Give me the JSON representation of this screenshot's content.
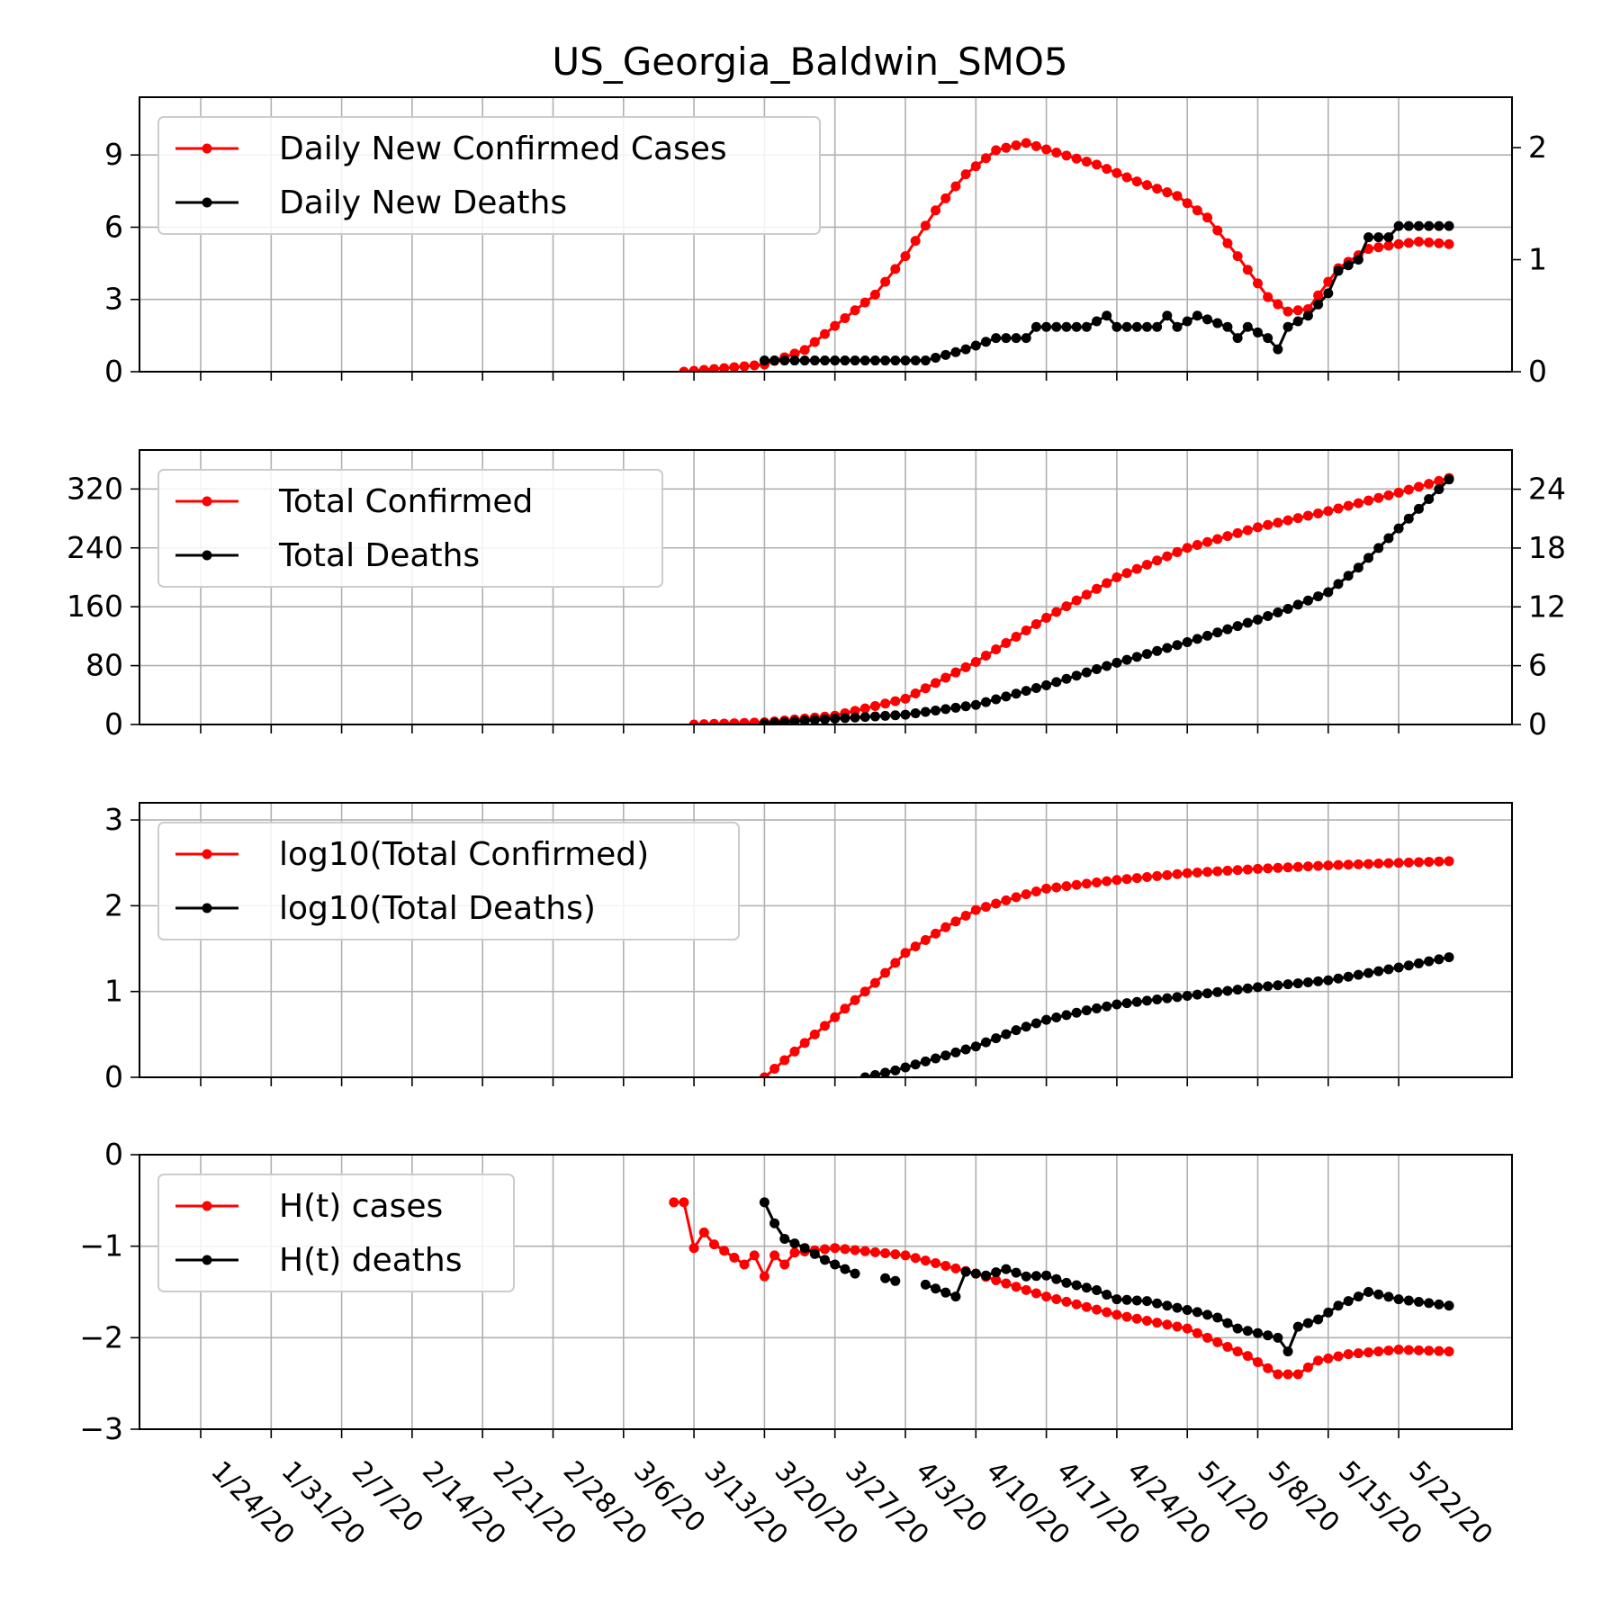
{
  "chart_data": {
    "title": "US_Georgia_Baldwin_SMO5",
    "x_ticks": [
      "1/24/20",
      "1/31/20",
      "2/7/20",
      "2/14/20",
      "2/21/20",
      "2/28/20",
      "3/6/20",
      "3/13/20",
      "3/20/20",
      "3/27/20",
      "4/3/20",
      "4/10/20",
      "4/17/20",
      "4/24/20",
      "5/1/20",
      "5/8/20",
      "5/15/20",
      "5/22/20"
    ],
    "dates_start": "1/24/20",
    "dates_end": "5/27/20",
    "colors": {
      "red": "#ff0000",
      "black": "#000000",
      "grid": "#b0b0b0"
    },
    "panels": [
      {
        "type": "line",
        "legend": [
          "Daily New Confirmed Cases",
          "Daily New Deaths"
        ],
        "left_ticks": [
          "0",
          "3",
          "6",
          "9"
        ],
        "left_tick_values": [
          0,
          3,
          6,
          9
        ],
        "ylim_left": [
          0,
          11.4
        ],
        "right_ticks": [
          "0",
          "1",
          "2"
        ],
        "right_tick_values": [
          0,
          1,
          2
        ],
        "ylim_right": [
          0,
          2.45
        ],
        "series": [
          {
            "name": "Daily New Confirmed Cases",
            "axis": "left",
            "color": "#ff0000",
            "points": [
              [
                "3/12/20",
                0.0
              ],
              [
                "3/16/20",
                0.15
              ],
              [
                "3/20/20",
                0.3
              ],
              [
                "3/24/20",
                0.9
              ],
              [
                "3/27/20",
                1.9
              ],
              [
                "3/31/20",
                3.2
              ],
              [
                "4/3/20",
                4.8
              ],
              [
                "4/6/20",
                6.7
              ],
              [
                "4/9/20",
                8.2
              ],
              [
                "4/12/20",
                9.2
              ],
              [
                "4/15/20",
                9.5
              ],
              [
                "4/18/20",
                9.1
              ],
              [
                "4/22/20",
                8.6
              ],
              [
                "4/26/20",
                7.9
              ],
              [
                "4/30/20",
                7.3
              ],
              [
                "5/3/20",
                6.4
              ],
              [
                "5/6/20",
                4.8
              ],
              [
                "5/9/20",
                3.1
              ],
              [
                "5/11/20",
                2.5
              ],
              [
                "5/13/20",
                2.6
              ],
              [
                "5/16/20",
                4.3
              ],
              [
                "5/19/20",
                5.1
              ],
              [
                "5/22/20",
                5.3
              ],
              [
                "5/24/20",
                5.4
              ],
              [
                "5/27/20",
                5.3
              ]
            ]
          },
          {
            "name": "Daily New Deaths",
            "axis": "right",
            "color": "#000000",
            "points": [
              [
                "3/20/20",
                0.1
              ],
              [
                "3/24/20",
                0.1
              ],
              [
                "3/28/20",
                0.1
              ],
              [
                "4/2/20",
                0.1
              ],
              [
                "4/5/20",
                0.1
              ],
              [
                "4/9/20",
                0.2
              ],
              [
                "4/12/20",
                0.3
              ],
              [
                "4/15/20",
                0.3
              ],
              [
                "4/16/20",
                0.4
              ],
              [
                "4/21/20",
                0.4
              ],
              [
                "4/23/20",
                0.5
              ],
              [
                "4/24/20",
                0.4
              ],
              [
                "4/28/20",
                0.4
              ],
              [
                "4/29/20",
                0.5
              ],
              [
                "4/30/20",
                0.4
              ],
              [
                "5/2/20",
                0.5
              ],
              [
                "5/5/20",
                0.4
              ],
              [
                "5/6/20",
                0.3
              ],
              [
                "5/7/20",
                0.4
              ],
              [
                "5/9/20",
                0.3
              ],
              [
                "5/10/20",
                0.2
              ],
              [
                "5/11/20",
                0.4
              ],
              [
                "5/13/20",
                0.5
              ],
              [
                "5/15/20",
                0.7
              ],
              [
                "5/16/20",
                0.9
              ],
              [
                "5/18/20",
                1.0
              ],
              [
                "5/19/20",
                1.2
              ],
              [
                "5/21/20",
                1.2
              ],
              [
                "5/22/20",
                1.3
              ],
              [
                "5/27/20",
                1.3
              ]
            ]
          }
        ]
      },
      {
        "type": "line",
        "legend": [
          "Total Confirmed",
          "Total Deaths"
        ],
        "left_ticks": [
          "0",
          "80",
          "160",
          "240",
          "320"
        ],
        "left_tick_values": [
          0,
          80,
          160,
          240,
          320
        ],
        "ylim_left": [
          0,
          373
        ],
        "right_ticks": [
          "0",
          "6",
          "12",
          "18",
          "24"
        ],
        "right_tick_values": [
          0,
          6,
          12,
          18,
          24
        ],
        "ylim_right": [
          0,
          28
        ],
        "series": [
          {
            "name": "Total Confirmed",
            "axis": "left",
            "color": "#ff0000",
            "points": [
              [
                "3/13/20",
                0
              ],
              [
                "3/20/20",
                3
              ],
              [
                "3/27/20",
                12
              ],
              [
                "4/3/20",
                35
              ],
              [
                "4/10/20",
                85
              ],
              [
                "4/17/20",
                145
              ],
              [
                "4/24/20",
                200
              ],
              [
                "5/1/20",
                240
              ],
              [
                "5/8/20",
                268
              ],
              [
                "5/15/20",
                290
              ],
              [
                "5/22/20",
                315
              ],
              [
                "5/27/20",
                335
              ]
            ]
          },
          {
            "name": "Total Deaths",
            "axis": "right",
            "color": "#000000",
            "points": [
              [
                "3/20/20",
                0.1
              ],
              [
                "3/27/20",
                0.6
              ],
              [
                "4/3/20",
                1.0
              ],
              [
                "4/10/20",
                2.0
              ],
              [
                "4/17/20",
                4.0
              ],
              [
                "4/24/20",
                6.3
              ],
              [
                "5/1/20",
                8.4
              ],
              [
                "5/8/20",
                10.7
              ],
              [
                "5/11/20",
                11.8
              ],
              [
                "5/15/20",
                13.5
              ],
              [
                "5/18/20",
                16.0
              ],
              [
                "5/22/20",
                20.0
              ],
              [
                "5/27/20",
                25.0
              ]
            ]
          }
        ]
      },
      {
        "type": "line",
        "legend": [
          "log10(Total Confirmed)",
          "log10(Total Deaths)"
        ],
        "left_ticks": [
          "0",
          "1",
          "2",
          "3"
        ],
        "left_tick_values": [
          0,
          1,
          2,
          3
        ],
        "ylim_left": [
          0,
          3.2
        ],
        "series": [
          {
            "name": "log10(Total Confirmed)",
            "axis": "left",
            "color": "#ff0000",
            "points": [
              [
                "3/20/20",
                0.0
              ],
              [
                "3/22/20",
                0.2
              ],
              [
                "3/24/20",
                0.4
              ],
              [
                "3/27/20",
                0.7
              ],
              [
                "3/31/20",
                1.1
              ],
              [
                "4/3/20",
                1.45
              ],
              [
                "4/7/20",
                1.75
              ],
              [
                "4/10/20",
                1.95
              ],
              [
                "4/14/20",
                2.1
              ],
              [
                "4/17/20",
                2.2
              ],
              [
                "4/24/20",
                2.3
              ],
              [
                "5/1/20",
                2.38
              ],
              [
                "5/8/20",
                2.43
              ],
              [
                "5/15/20",
                2.47
              ],
              [
                "5/22/20",
                2.5
              ],
              [
                "5/27/20",
                2.52
              ]
            ]
          },
          {
            "name": "log10(Total Deaths)",
            "axis": "left",
            "color": "#000000",
            "points": [
              [
                "3/30/20",
                0.0
              ],
              [
                "4/2/20",
                0.08
              ],
              [
                "4/6/20",
                0.22
              ],
              [
                "4/10/20",
                0.36
              ],
              [
                "4/14/20",
                0.55
              ],
              [
                "4/17/20",
                0.67
              ],
              [
                "4/21/20",
                0.78
              ],
              [
                "4/24/20",
                0.85
              ],
              [
                "5/1/20",
                0.95
              ],
              [
                "5/8/20",
                1.05
              ],
              [
                "5/15/20",
                1.13
              ],
              [
                "5/22/20",
                1.28
              ],
              [
                "5/27/20",
                1.4
              ]
            ]
          }
        ]
      },
      {
        "type": "line",
        "legend": [
          "H(t) cases",
          "H(t) deaths"
        ],
        "left_ticks": [
          "−3",
          "−2",
          "−1",
          "0"
        ],
        "left_tick_values": [
          -3,
          -2,
          -1,
          0
        ],
        "ylim_left": [
          -3,
          0
        ],
        "series": [
          {
            "name": "H(t) cases",
            "axis": "left",
            "color": "#ff0000",
            "points": [
              [
                "3/11/20",
                -0.52
              ],
              [
                "3/12/20",
                -0.52
              ],
              [
                "3/13/20",
                -1.02
              ],
              [
                "3/14/20",
                -0.85
              ],
              [
                "3/15/20",
                -0.98
              ],
              [
                "3/16/20",
                -1.05
              ],
              [
                "3/18/20",
                -1.2
              ],
              [
                "3/19/20",
                -1.1
              ],
              [
                "3/20/20",
                -1.33
              ],
              [
                "3/21/20",
                -1.1
              ],
              [
                "3/22/20",
                -1.2
              ],
              [
                "3/23/20",
                -1.07
              ],
              [
                "3/27/20",
                -1.02
              ],
              [
                "4/3/20",
                -1.1
              ],
              [
                "4/10/20",
                -1.3
              ],
              [
                "4/17/20",
                -1.55
              ],
              [
                "4/24/20",
                -1.75
              ],
              [
                "5/1/20",
                -1.9
              ],
              [
                "5/7/20",
                -2.2
              ],
              [
                "5/10/20",
                -2.4
              ],
              [
                "5/12/20",
                -2.4
              ],
              [
                "5/14/20",
                -2.25
              ],
              [
                "5/17/20",
                -2.18
              ],
              [
                "5/22/20",
                -2.13
              ],
              [
                "5/27/20",
                -2.15
              ]
            ]
          },
          {
            "name": "H(t) deaths",
            "axis": "left",
            "color": "#000000",
            "points": [
              [
                "3/20/20",
                -0.52
              ],
              [
                "3/21/20",
                -0.75
              ],
              [
                "3/22/20",
                -0.92
              ],
              [
                "3/24/20",
                -1.02
              ],
              [
                "3/26/20",
                -1.15
              ],
              [
                "3/28/20",
                -1.25
              ],
              [
                "3/29/20",
                -1.3
              ],
              null,
              [
                "4/1/20",
                -1.35
              ],
              [
                "4/2/20",
                -1.38
              ],
              null,
              [
                "4/5/20",
                -1.42
              ],
              [
                "4/8/20",
                -1.55
              ],
              [
                "4/9/20",
                -1.28
              ],
              [
                "4/11/20",
                -1.32
              ],
              [
                "4/13/20",
                -1.25
              ],
              [
                "4/15/20",
                -1.33
              ],
              [
                "4/17/20",
                -1.32
              ],
              [
                "4/19/20",
                -1.4
              ],
              [
                "4/22/20",
                -1.48
              ],
              [
                "4/24/20",
                -1.58
              ],
              [
                "4/27/20",
                -1.6
              ],
              [
                "4/29/20",
                -1.65
              ],
              [
                "5/2/20",
                -1.72
              ],
              [
                "5/4/20",
                -1.78
              ],
              [
                "5/6/20",
                -1.9
              ],
              [
                "5/8/20",
                -1.95
              ],
              [
                "5/10/20",
                -2.0
              ],
              [
                "5/11/20",
                -2.15
              ],
              [
                "5/12/20",
                -1.88
              ],
              [
                "5/14/20",
                -1.8
              ],
              [
                "5/16/20",
                -1.65
              ],
              [
                "5/19/20",
                -1.5
              ],
              [
                "5/22/20",
                -1.58
              ],
              [
                "5/27/20",
                -1.65
              ]
            ]
          }
        ]
      }
    ]
  }
}
